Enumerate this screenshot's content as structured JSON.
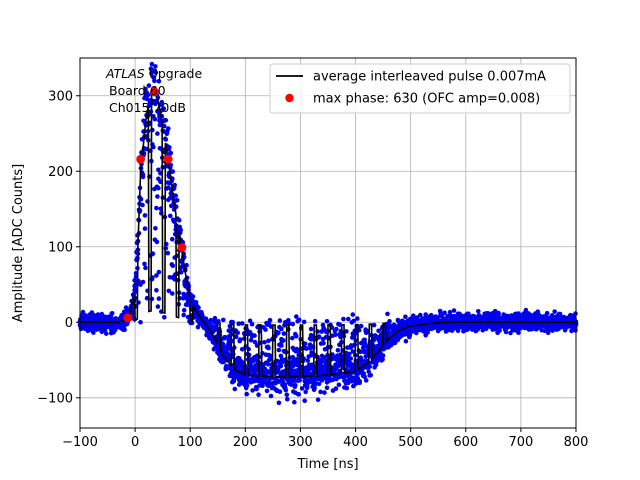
{
  "chart_data": {
    "type": "scatter",
    "xlabel": "Time [ns]",
    "ylabel": "Amplitude [ADC Counts]",
    "xlim": [
      -100,
      800
    ],
    "ylim": [
      -140,
      350
    ],
    "xticks": [
      -100,
      0,
      100,
      200,
      300,
      400,
      500,
      600,
      700,
      800
    ],
    "yticks": [
      -100,
      0,
      100,
      200,
      300
    ],
    "grid": true,
    "legend_position": "top-right",
    "annotation": {
      "italic": "ATLAS",
      "line1_rest": " Upgrade",
      "line2": "Board 60",
      "line3": "Ch015 70dB"
    },
    "colors": {
      "scatter": "#0000ee",
      "average": "#000000",
      "max_phase": "#ff0000"
    },
    "series": [
      {
        "name": "average interleaved pulse 0.007mA",
        "kind": "line",
        "x": [
          -100,
          -30,
          -20,
          -10,
          0,
          5,
          10,
          20,
          30,
          35,
          40,
          50,
          60,
          65,
          70,
          80,
          90,
          100,
          110,
          120,
          140,
          160,
          180,
          200,
          250,
          300,
          350,
          400,
          420,
          440,
          460,
          480,
          500,
          530,
          560,
          600,
          700,
          800
        ],
        "y": [
          0,
          0,
          3,
          10,
          40,
          100,
          200,
          270,
          305,
          310,
          300,
          260,
          215,
          190,
          160,
          120,
          70,
          30,
          15,
          5,
          -15,
          -45,
          -62,
          -70,
          -72,
          -72,
          -70,
          -65,
          -55,
          -40,
          -22,
          -10,
          -5,
          -2,
          0,
          0,
          0,
          0
        ]
      },
      {
        "name": "max phase: 630 (OFC amp=0.008)",
        "kind": "points",
        "x": [
          -13,
          10,
          35,
          60,
          85
        ],
        "y": [
          6,
          216,
          305,
          216,
          99
        ]
      }
    ]
  }
}
